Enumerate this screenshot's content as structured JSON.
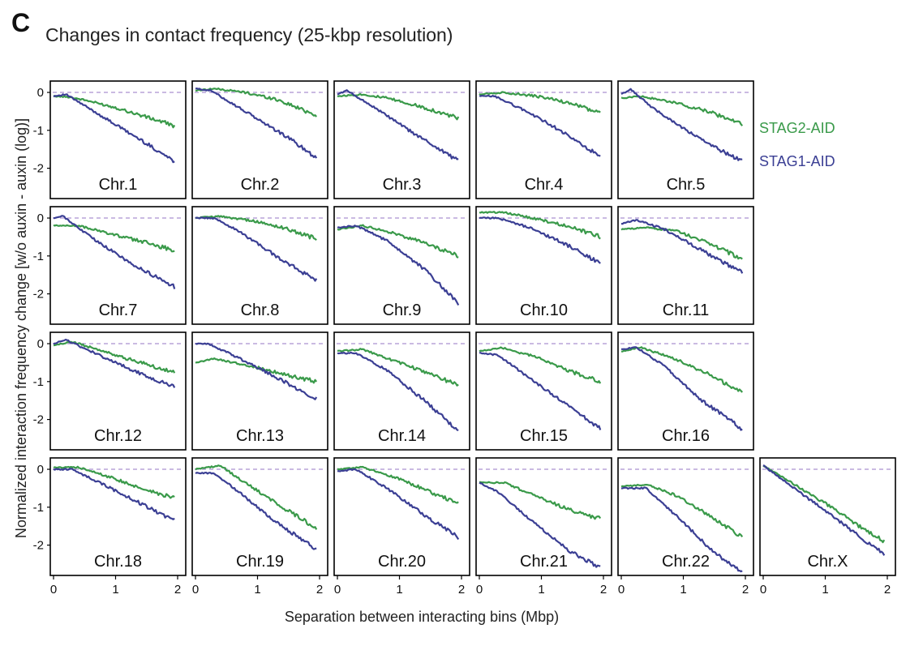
{
  "figure": {
    "panel_letter": "C",
    "title": "Changes in contact frequency (25-kbp resolution)",
    "ylabel": "Normalized interaction frequency change [w/o auxin - auxin (log)]",
    "xlabel": "Separation between interacting bins (Mbp)",
    "legend": [
      {
        "name": "STAG2-AID",
        "color": "#3a9a4a"
      },
      {
        "name": "STAG1-AID",
        "color": "#3b3f94"
      }
    ],
    "legend_position": "right of first row",
    "reference_line_color": "#b9a3d9"
  },
  "chart_data": {
    "type": "line",
    "grid": false,
    "xlim": [
      0,
      2
    ],
    "ylim": [
      -2.8,
      0.3
    ],
    "x_ticks": [
      0,
      1,
      2
    ],
    "y_ticks": [
      0,
      -1,
      -2
    ],
    "series_names": [
      "STAG2-AID",
      "STAG1-AID"
    ],
    "panels": [
      {
        "label": "Chr.1",
        "stag2": [
          [
            0,
            -0.1
          ],
          [
            0.25,
            -0.12
          ],
          [
            0.5,
            -0.2
          ],
          [
            1,
            -0.4
          ],
          [
            1.5,
            -0.65
          ],
          [
            1.95,
            -0.88
          ]
        ],
        "stag1": [
          [
            0,
            -0.1
          ],
          [
            0.2,
            -0.05
          ],
          [
            0.5,
            -0.35
          ],
          [
            1,
            -0.85
          ],
          [
            1.5,
            -1.35
          ],
          [
            1.95,
            -1.82
          ]
        ]
      },
      {
        "label": "Chr.2",
        "stag2": [
          [
            0,
            0.05
          ],
          [
            0.3,
            0.1
          ],
          [
            0.8,
            0
          ],
          [
            1.3,
            -0.18
          ],
          [
            1.95,
            -0.6
          ]
        ],
        "stag1": [
          [
            0,
            0.1
          ],
          [
            0.25,
            0.05
          ],
          [
            0.6,
            -0.3
          ],
          [
            1,
            -0.7
          ],
          [
            1.5,
            -1.2
          ],
          [
            1.95,
            -1.72
          ]
        ]
      },
      {
        "label": "Chr.3",
        "stag2": [
          [
            0,
            -0.1
          ],
          [
            0.4,
            -0.05
          ],
          [
            0.8,
            -0.15
          ],
          [
            1.4,
            -0.4
          ],
          [
            1.95,
            -0.68
          ]
        ],
        "stag1": [
          [
            0,
            -0.05
          ],
          [
            0.15,
            0.05
          ],
          [
            0.6,
            -0.4
          ],
          [
            1.2,
            -1.05
          ],
          [
            1.95,
            -1.8
          ]
        ]
      },
      {
        "label": "Chr.4",
        "stag2": [
          [
            0,
            -0.05
          ],
          [
            0.4,
            0
          ],
          [
            1,
            -0.12
          ],
          [
            1.5,
            -0.3
          ],
          [
            1.95,
            -0.55
          ]
        ],
        "stag1": [
          [
            0,
            -0.1
          ],
          [
            0.25,
            -0.1
          ],
          [
            0.7,
            -0.45
          ],
          [
            1.2,
            -0.9
          ],
          [
            1.95,
            -1.7
          ]
        ]
      },
      {
        "label": "Chr.5",
        "stag2": [
          [
            0,
            -0.15
          ],
          [
            0.3,
            -0.1
          ],
          [
            0.8,
            -0.25
          ],
          [
            1.4,
            -0.5
          ],
          [
            1.95,
            -0.85
          ]
        ],
        "stag1": [
          [
            0,
            -0.05
          ],
          [
            0.15,
            0.08
          ],
          [
            0.5,
            -0.4
          ],
          [
            1,
            -0.95
          ],
          [
            1.5,
            -1.45
          ],
          [
            1.95,
            -1.8
          ]
        ]
      },
      {
        "label": "Chr.7",
        "stag2": [
          [
            0,
            -0.2
          ],
          [
            0.4,
            -0.2
          ],
          [
            1,
            -0.45
          ],
          [
            1.5,
            -0.65
          ],
          [
            1.95,
            -0.85
          ]
        ],
        "stag1": [
          [
            0,
            0
          ],
          [
            0.15,
            0.05
          ],
          [
            0.6,
            -0.5
          ],
          [
            1.2,
            -1.15
          ],
          [
            1.95,
            -1.82
          ]
        ]
      },
      {
        "label": "Chr.8",
        "stag2": [
          [
            0,
            0
          ],
          [
            0.4,
            0.05
          ],
          [
            1,
            -0.1
          ],
          [
            1.5,
            -0.3
          ],
          [
            1.95,
            -0.55
          ]
        ],
        "stag1": [
          [
            0,
            0
          ],
          [
            0.3,
            0
          ],
          [
            0.7,
            -0.35
          ],
          [
            1.3,
            -1.0
          ],
          [
            1.95,
            -1.65
          ]
        ]
      },
      {
        "label": "Chr.9",
        "stag2": [
          [
            0,
            -0.3
          ],
          [
            0.4,
            -0.2
          ],
          [
            0.8,
            -0.35
          ],
          [
            1.4,
            -0.65
          ],
          [
            1.95,
            -1.0
          ]
        ],
        "stag1": [
          [
            0,
            -0.25
          ],
          [
            0.3,
            -0.2
          ],
          [
            0.8,
            -0.6
          ],
          [
            1.4,
            -1.35
          ],
          [
            1.95,
            -2.25
          ]
        ]
      },
      {
        "label": "Chr.10",
        "stag2": [
          [
            0,
            0.15
          ],
          [
            0.4,
            0.15
          ],
          [
            1,
            -0.05
          ],
          [
            1.5,
            -0.25
          ],
          [
            1.95,
            -0.5
          ]
        ],
        "stag1": [
          [
            0,
            0
          ],
          [
            0.3,
            0
          ],
          [
            0.8,
            -0.25
          ],
          [
            1.4,
            -0.7
          ],
          [
            1.95,
            -1.2
          ]
        ]
      },
      {
        "label": "Chr.11",
        "stag2": [
          [
            0,
            -0.3
          ],
          [
            0.4,
            -0.25
          ],
          [
            0.9,
            -0.35
          ],
          [
            1.4,
            -0.65
          ],
          [
            1.95,
            -1.08
          ]
        ],
        "stag1": [
          [
            0,
            -0.15
          ],
          [
            0.25,
            -0.05
          ],
          [
            0.7,
            -0.3
          ],
          [
            1.3,
            -0.85
          ],
          [
            1.95,
            -1.45
          ]
        ]
      },
      {
        "label": "Chr.12",
        "stag2": [
          [
            0,
            -0.05
          ],
          [
            0.3,
            0.05
          ],
          [
            0.8,
            -0.2
          ],
          [
            1.4,
            -0.5
          ],
          [
            1.95,
            -0.75
          ]
        ],
        "stag1": [
          [
            0,
            0
          ],
          [
            0.2,
            0.1
          ],
          [
            0.6,
            -0.2
          ],
          [
            1.2,
            -0.65
          ],
          [
            1.95,
            -1.15
          ]
        ]
      },
      {
        "label": "Chr.13",
        "stag2": [
          [
            0,
            -0.5
          ],
          [
            0.3,
            -0.4
          ],
          [
            0.8,
            -0.55
          ],
          [
            1.4,
            -0.8
          ],
          [
            1.95,
            -1.0
          ]
        ],
        "stag1": [
          [
            0,
            0
          ],
          [
            0.2,
            0
          ],
          [
            0.6,
            -0.3
          ],
          [
            1.2,
            -0.8
          ],
          [
            1.95,
            -1.45
          ]
        ]
      },
      {
        "label": "Chr.14",
        "stag2": [
          [
            0,
            -0.2
          ],
          [
            0.4,
            -0.15
          ],
          [
            1,
            -0.5
          ],
          [
            1.5,
            -0.8
          ],
          [
            1.95,
            -1.1
          ]
        ],
        "stag1": [
          [
            0,
            -0.25
          ],
          [
            0.3,
            -0.25
          ],
          [
            0.8,
            -0.7
          ],
          [
            1.4,
            -1.5
          ],
          [
            1.95,
            -2.3
          ]
        ]
      },
      {
        "label": "Chr.15",
        "stag2": [
          [
            0,
            -0.2
          ],
          [
            0.35,
            -0.1
          ],
          [
            0.9,
            -0.35
          ],
          [
            1.5,
            -0.75
          ],
          [
            1.95,
            -1.0
          ]
        ],
        "stag1": [
          [
            0,
            -0.25
          ],
          [
            0.3,
            -0.3
          ],
          [
            0.8,
            -0.9
          ],
          [
            1.4,
            -1.6
          ],
          [
            1.95,
            -2.25
          ]
        ]
      },
      {
        "label": "Chr.16",
        "stag2": [
          [
            0,
            -0.2
          ],
          [
            0.3,
            -0.1
          ],
          [
            0.8,
            -0.35
          ],
          [
            1.4,
            -0.8
          ],
          [
            1.95,
            -1.3
          ]
        ],
        "stag1": [
          [
            0,
            -0.15
          ],
          [
            0.25,
            -0.1
          ],
          [
            0.7,
            -0.6
          ],
          [
            1.3,
            -1.5
          ],
          [
            1.95,
            -2.25
          ]
        ]
      },
      {
        "label": "Chr.18",
        "stag2": [
          [
            0,
            0.05
          ],
          [
            0.4,
            0.05
          ],
          [
            0.9,
            -0.2
          ],
          [
            1.4,
            -0.5
          ],
          [
            1.95,
            -0.75
          ]
        ],
        "stag1": [
          [
            0,
            0
          ],
          [
            0.3,
            0
          ],
          [
            0.8,
            -0.4
          ],
          [
            1.4,
            -0.9
          ],
          [
            1.95,
            -1.35
          ]
        ]
      },
      {
        "label": "Chr.19",
        "stag2": [
          [
            0,
            0
          ],
          [
            0.4,
            0.1
          ],
          [
            0.8,
            -0.35
          ],
          [
            1.4,
            -1.0
          ],
          [
            1.95,
            -1.55
          ]
        ],
        "stag1": [
          [
            0,
            -0.1
          ],
          [
            0.3,
            -0.1
          ],
          [
            0.7,
            -0.6
          ],
          [
            1.3,
            -1.4
          ],
          [
            1.95,
            -2.1
          ]
        ]
      },
      {
        "label": "Chr.20",
        "stag2": [
          [
            0,
            0
          ],
          [
            0.4,
            0.05
          ],
          [
            1,
            -0.25
          ],
          [
            1.5,
            -0.6
          ],
          [
            1.95,
            -0.9
          ]
        ],
        "stag1": [
          [
            0,
            -0.05
          ],
          [
            0.3,
            0
          ],
          [
            0.8,
            -0.5
          ],
          [
            1.4,
            -1.2
          ],
          [
            1.95,
            -1.8
          ]
        ]
      },
      {
        "label": "Chr.21",
        "stag2": [
          [
            0,
            -0.35
          ],
          [
            0.4,
            -0.35
          ],
          [
            0.9,
            -0.7
          ],
          [
            1.5,
            -1.1
          ],
          [
            1.95,
            -1.3
          ]
        ],
        "stag1": [
          [
            0,
            -0.35
          ],
          [
            0.3,
            -0.6
          ],
          [
            0.8,
            -1.3
          ],
          [
            1.4,
            -2.1
          ],
          [
            1.95,
            -2.6
          ]
        ]
      },
      {
        "label": "Chr.22",
        "stag2": [
          [
            0,
            -0.45
          ],
          [
            0.4,
            -0.4
          ],
          [
            0.9,
            -0.7
          ],
          [
            1.5,
            -1.3
          ],
          [
            1.95,
            -1.8
          ]
        ],
        "stag1": [
          [
            0,
            -0.5
          ],
          [
            0.4,
            -0.5
          ],
          [
            0.9,
            -1.25
          ],
          [
            1.5,
            -2.2
          ],
          [
            1.95,
            -2.7
          ]
        ]
      },
      {
        "label": "Chr.X",
        "stag2": [
          [
            0,
            0.1
          ],
          [
            0.5,
            -0.4
          ],
          [
            1,
            -0.9
          ],
          [
            1.5,
            -1.45
          ],
          [
            1.95,
            -1.9
          ]
        ],
        "stag1": [
          [
            0,
            0.1
          ],
          [
            0.5,
            -0.5
          ],
          [
            1,
            -1.1
          ],
          [
            1.5,
            -1.7
          ],
          [
            1.95,
            -2.25
          ]
        ]
      }
    ]
  }
}
